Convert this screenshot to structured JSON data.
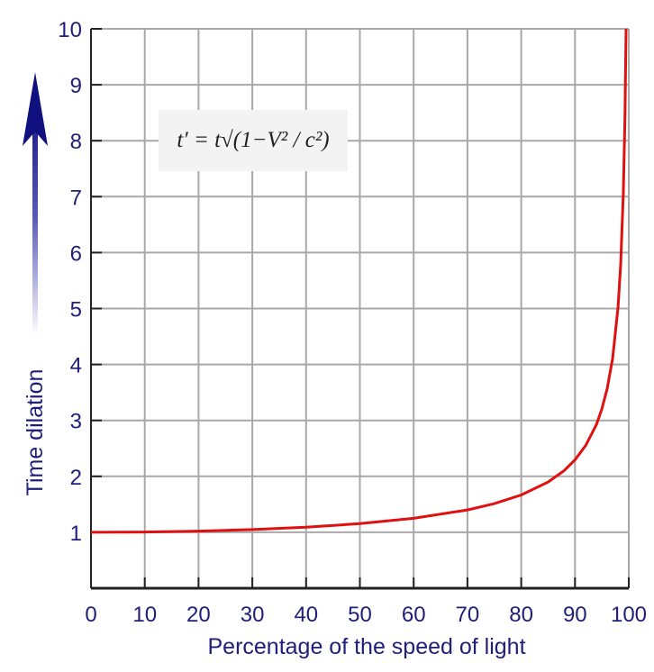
{
  "chart_data": {
    "type": "line",
    "xlabel": "Percentage of the speed of light",
    "ylabel": "Time dilation",
    "xlim": [
      0,
      100
    ],
    "ylim": [
      0,
      10
    ],
    "x_ticks": [
      "0",
      "10",
      "20",
      "30",
      "40",
      "50",
      "60",
      "70",
      "80",
      "90",
      "100"
    ],
    "y_ticks": [
      "1",
      "2",
      "3",
      "4",
      "5",
      "6",
      "7",
      "8",
      "9",
      "10"
    ],
    "grid": true,
    "annotation": "t′ = t√(1−V² / c²)",
    "series": [
      {
        "color": "#e01010",
        "x": [
          0,
          10,
          20,
          30,
          40,
          50,
          60,
          70,
          75,
          80,
          85,
          88,
          90,
          92,
          94,
          95,
          96,
          97,
          98,
          98.5,
          99,
          99.3,
          99.5
        ],
        "y": [
          1,
          1.005,
          1.021,
          1.048,
          1.091,
          1.155,
          1.25,
          1.4,
          1.512,
          1.667,
          1.898,
          2.105,
          2.294,
          2.552,
          2.931,
          3.203,
          3.571,
          4.113,
          5.025,
          5.783,
          7.089,
          8.466,
          10.01
        ]
      }
    ],
    "text_color": "#1f1f7a",
    "arrow_color": "#1a1a8a"
  }
}
